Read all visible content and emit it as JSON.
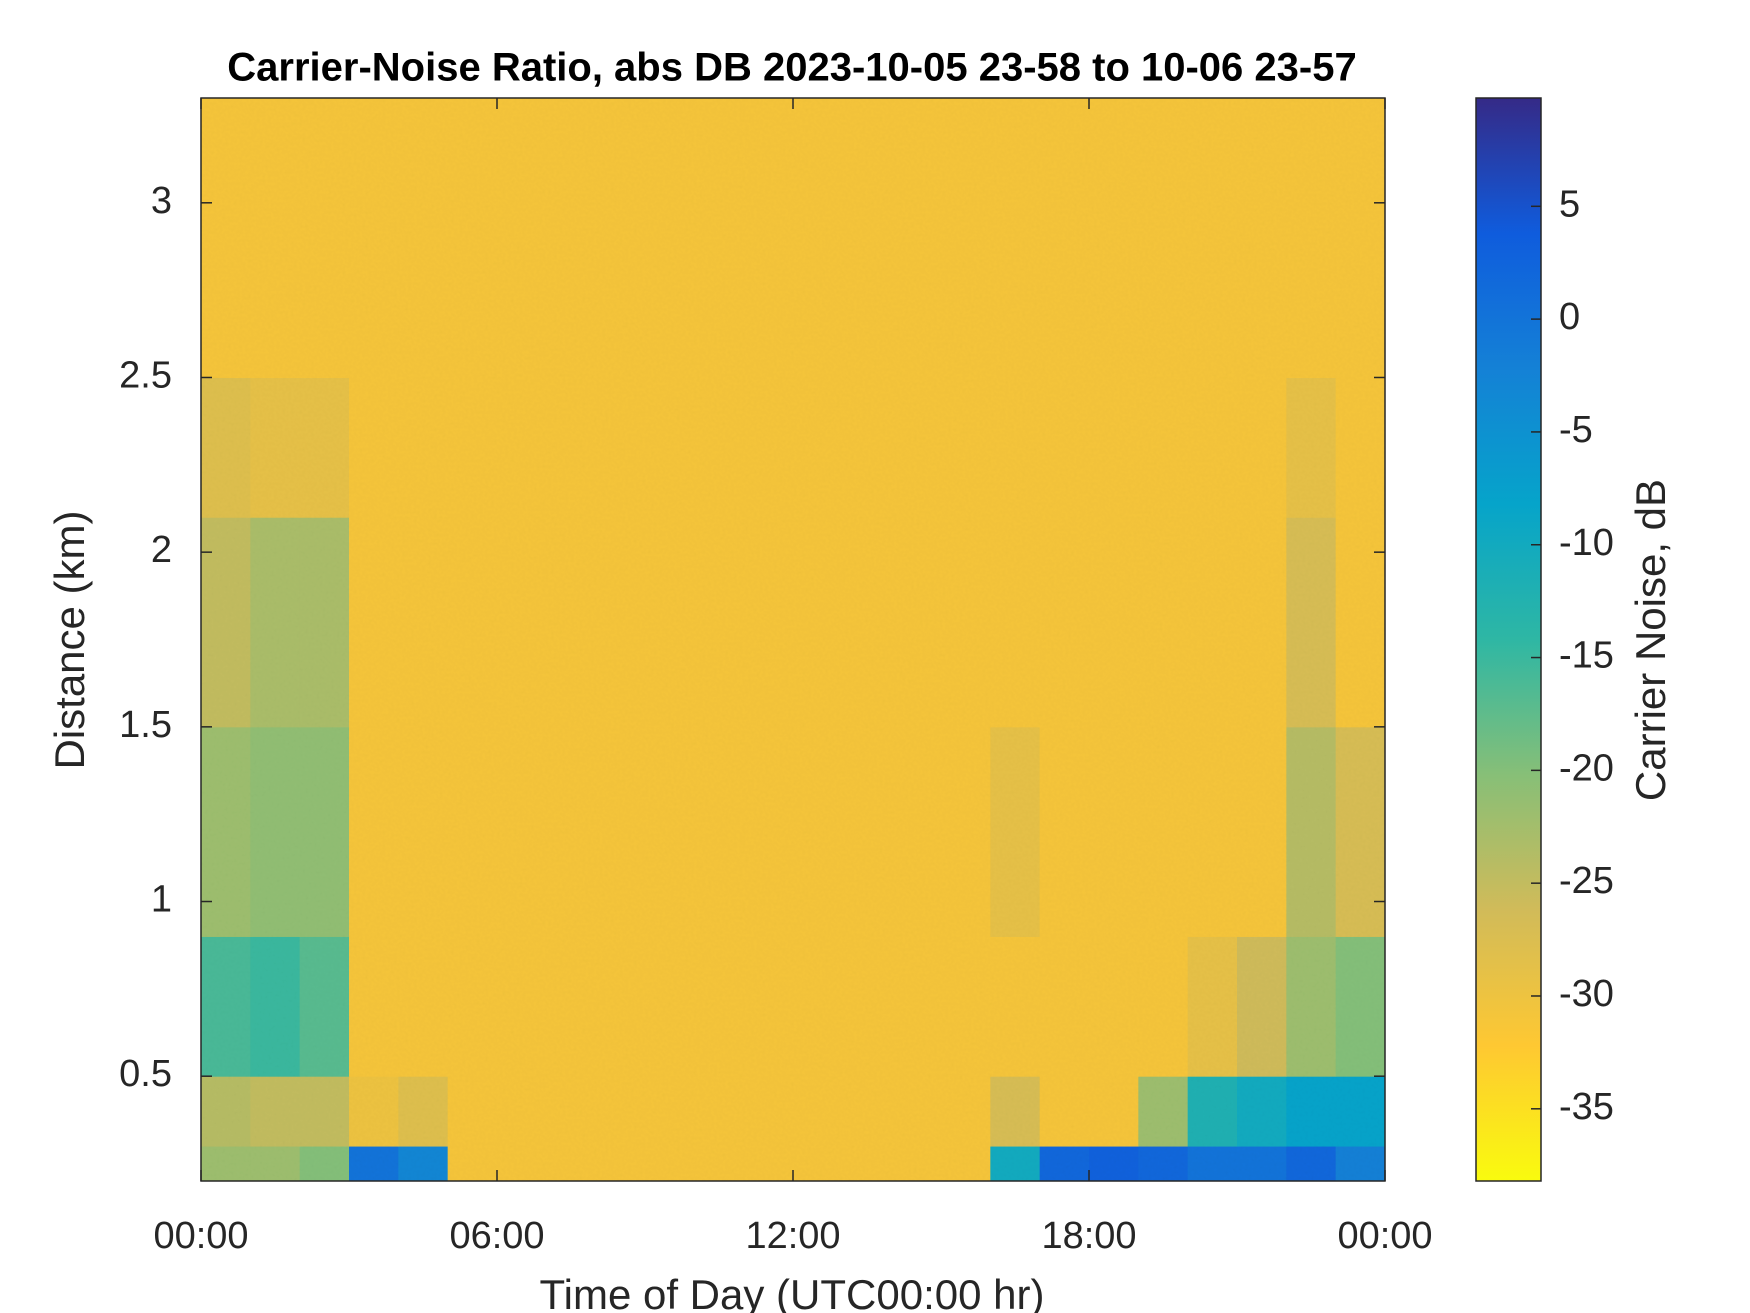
{
  "chart_data": {
    "type": "heatmap",
    "title": "Carrier-Noise Ratio, abs DB 2023-10-05 23-58 to 10-06 23-57",
    "x_label": "Time of Day (UTC00:00 hr)",
    "y_label": "Distance (km)",
    "colorbar_label": "Carrier Noise, dB",
    "x_edges": [
      0,
      1,
      2,
      3,
      4,
      5,
      6,
      7,
      8,
      9,
      10,
      11,
      12,
      13,
      14,
      15,
      16,
      17,
      18,
      19,
      20,
      21,
      22,
      23,
      24
    ],
    "y_edges": [
      0.2,
      0.3,
      0.5,
      0.9,
      1.5,
      2.1,
      2.5,
      3.3
    ],
    "z": [
      [
        -22,
        -22,
        -20,
        0,
        -3,
        -31,
        -31,
        -31,
        -31,
        -31,
        -31,
        -31,
        -31,
        -31,
        -31,
        -31,
        -10,
        2,
        3,
        2,
        0,
        0,
        2,
        -2
      ],
      [
        -24,
        -25,
        -25,
        -30,
        -28,
        -31,
        -31,
        -31,
        -31,
        -31,
        -31,
        -31,
        -31,
        -31,
        -31,
        -31,
        -27,
        -31,
        -31,
        -22,
        -12,
        -10,
        -8,
        -8
      ],
      [
        -16,
        -15,
        -17,
        -31,
        -31,
        -31,
        -31,
        -31,
        -31,
        -31,
        -31,
        -31,
        -31,
        -31,
        -31,
        -31,
        -31,
        -31,
        -31,
        -31,
        -29,
        -26,
        -22,
        -20
      ],
      [
        -22,
        -21,
        -21,
        -31,
        -31,
        -31,
        -31,
        -31,
        -31,
        -31,
        -31,
        -31,
        -31,
        -31,
        -31,
        -31,
        -29,
        -31,
        -31,
        -31,
        -31,
        -31,
        -24,
        -27
      ],
      [
        -25,
        -23,
        -23,
        -31,
        -31,
        -31,
        -31,
        -31,
        -31,
        -31,
        -31,
        -31,
        -31,
        -31,
        -31,
        -31,
        -31,
        -31,
        -31,
        -31,
        -31,
        -31,
        -27,
        -31
      ],
      [
        -28,
        -29,
        -29,
        -31,
        -31,
        -31,
        -31,
        -31,
        -31,
        -31,
        -31,
        -31,
        -31,
        -31,
        -31,
        -31,
        -31,
        -31,
        -31,
        -31,
        -31,
        -31,
        -29,
        -31
      ],
      [
        -31,
        -31,
        -31,
        -31,
        -31,
        -31,
        -31,
        -31,
        -31,
        -31,
        -31,
        -31,
        -31,
        -31,
        -31,
        -31,
        -31,
        -31,
        -31,
        -31,
        -31,
        -31,
        -31,
        -31
      ]
    ],
    "xlim": [
      0,
      24
    ],
    "xticks": [
      {
        "value": 0,
        "label": "00:00"
      },
      {
        "value": 6,
        "label": "06:00"
      },
      {
        "value": 12,
        "label": "12:00"
      },
      {
        "value": 18,
        "label": "18:00"
      },
      {
        "value": 24,
        "label": "00:00"
      }
    ],
    "ylim": [
      0.2,
      3.3
    ],
    "yticks": [
      0.5,
      1,
      1.5,
      2,
      2.5,
      3
    ],
    "clim": [
      -38.2,
      9.8
    ],
    "cticks": [
      -35,
      -30,
      -25,
      -20,
      -15,
      -10,
      -5,
      0,
      5
    ],
    "colormap": [
      "#f9fb0e",
      "#fec832",
      "#d1bb59",
      "#87bf77",
      "#2eb7a4",
      "#06a4ca",
      "#1481d6",
      "#0f5cdd",
      "#352a87"
    ]
  }
}
